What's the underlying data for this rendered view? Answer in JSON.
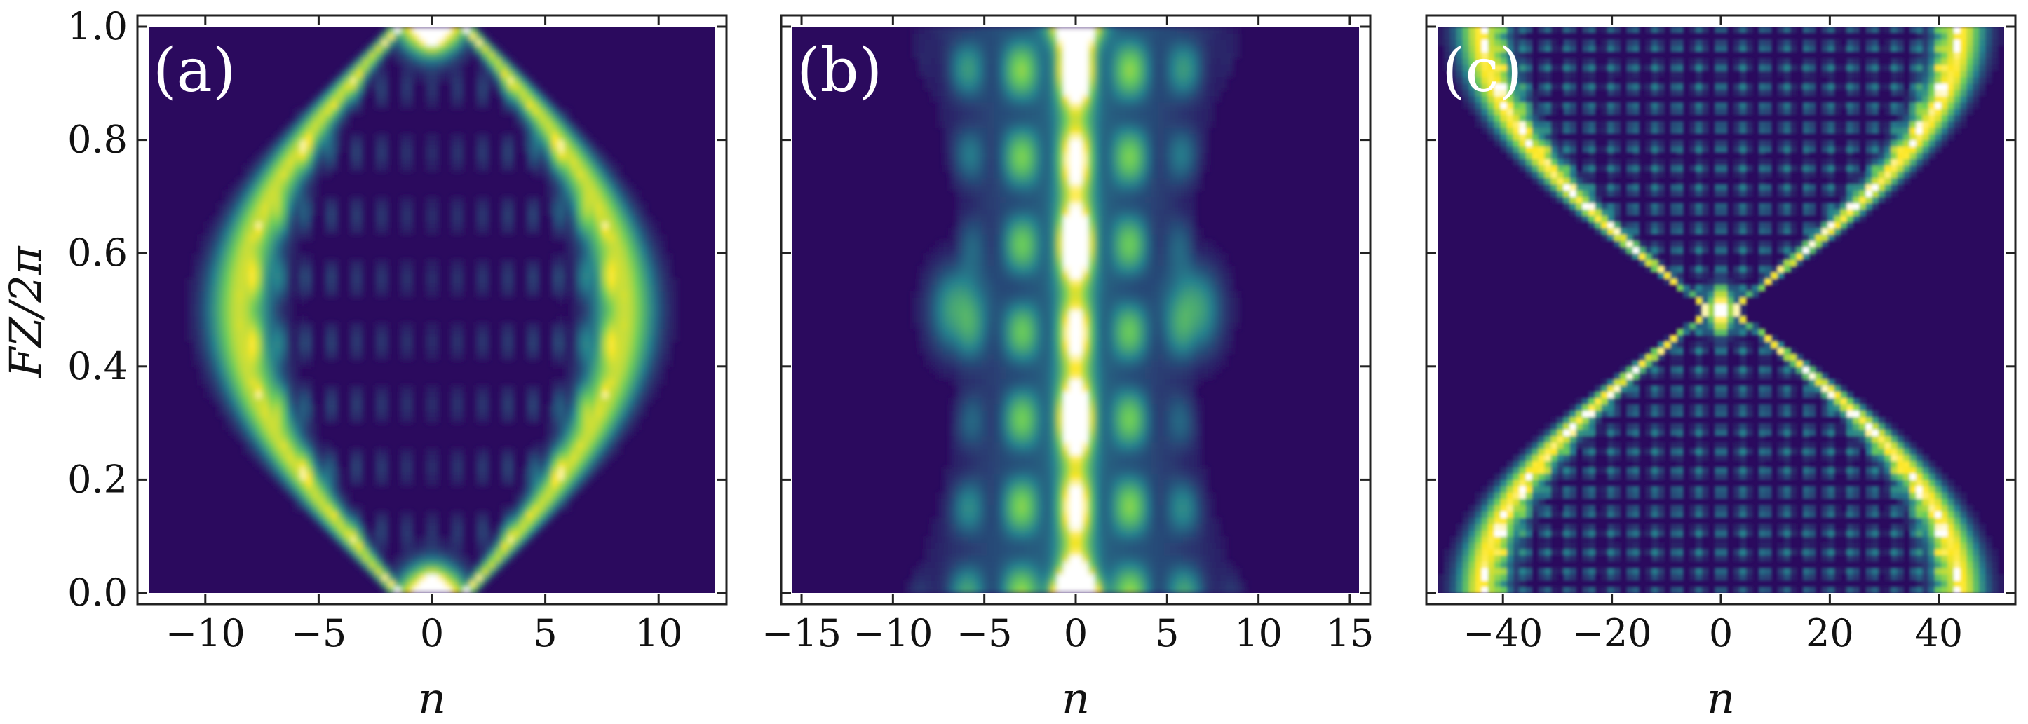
{
  "chart_data": [
    {
      "type": "heatmap",
      "panel_label": "(a)",
      "xlabel": "n",
      "ylabel": "FZ/2π",
      "xlim": [
        -12.5,
        12.5
      ],
      "ylim": [
        0,
        1
      ],
      "xticks": [
        -10,
        -5,
        0,
        5,
        10
      ],
      "xtick_labels": [
        "−10",
        "−5",
        "0",
        "5",
        "10"
      ],
      "yticks": [
        0,
        0.2,
        0.4,
        0.6,
        0.8,
        1.0
      ],
      "ytick_labels": [
        "0.0",
        "0.2",
        "0.4",
        "0.6",
        "0.8",
        "1.0"
      ],
      "envelope_width_at_center": 8.5,
      "envelope_width_at_edges": 1.5,
      "pattern": "lens",
      "colormap": "viridis"
    },
    {
      "type": "heatmap",
      "panel_label": "(b)",
      "xlabel": "n",
      "ylabel": "",
      "xlim": [
        -15.5,
        15.5
      ],
      "ylim": [
        0,
        1
      ],
      "xticks": [
        -15,
        -10,
        -5,
        0,
        5,
        10,
        15
      ],
      "xtick_labels": [
        "−15",
        "−10",
        "−5",
        "0",
        "5",
        "10",
        "15"
      ],
      "yticks": [
        0,
        0.2,
        0.4,
        0.6,
        0.8,
        1.0
      ],
      "ytick_labels": [],
      "envelope_width_at_center": 7.0,
      "envelope_width_at_edges": 6.0,
      "pattern": "waist",
      "colormap": "viridis"
    },
    {
      "type": "heatmap",
      "panel_label": "(c)",
      "xlabel": "n",
      "ylabel": "",
      "xlim": [
        -52,
        52
      ],
      "ylim": [
        0,
        1
      ],
      "xticks": [
        -40,
        -20,
        0,
        20,
        40
      ],
      "xtick_labels": [
        "−40",
        "−20",
        "0",
        "20",
        "40"
      ],
      "yticks": [
        0,
        0.2,
        0.4,
        0.6,
        0.8,
        1.0
      ],
      "ytick_labels": [],
      "envelope_width_at_center": 2.0,
      "envelope_width_at_edges": 44.0,
      "pattern": "hourglass",
      "colormap": "viridis"
    }
  ],
  "colors": {
    "background_low": "#2b0a5e",
    "mid": "#26828e",
    "high": "#6cce59",
    "peak": "#fde725",
    "saturated": "#ffffff"
  }
}
